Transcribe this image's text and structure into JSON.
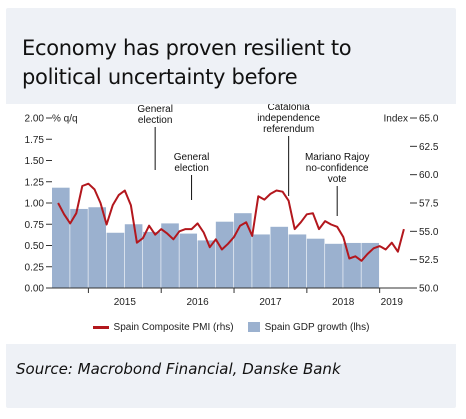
{
  "title_line1": "Economy has proven resilient to",
  "title_line2": "political uncertainty before",
  "source": "Source: Macrobond Financial, Danske Bank",
  "chart_data": {
    "type": "bar+line",
    "left_axis": {
      "label": "% q/q",
      "min": 0.0,
      "max": 2.0,
      "ticks": [
        "0.00",
        "0.25",
        "0.50",
        "0.75",
        "1.00",
        "1.25",
        "1.50",
        "1.75",
        "2.00"
      ]
    },
    "right_axis": {
      "label": "Index",
      "min": 50.0,
      "max": 65.0,
      "ticks": [
        "50.0",
        "52.5",
        "55.0",
        "57.5",
        "60.0",
        "62.5",
        "65.0"
      ]
    },
    "x_ticks": [
      "2015",
      "2016",
      "2017",
      "2018",
      "2019"
    ],
    "colors": {
      "bars": "#9bb1cf",
      "line": "#b3171d"
    },
    "bars": {
      "name": "Spain GDP growth (lhs)",
      "quarters": [
        "2014Q3",
        "2014Q4",
        "2015Q1",
        "2015Q2",
        "2015Q3",
        "2015Q4",
        "2016Q1",
        "2016Q2",
        "2016Q3",
        "2016Q4",
        "2017Q1",
        "2017Q2",
        "2017Q3",
        "2017Q4",
        "2018Q1",
        "2018Q2",
        "2018Q3",
        "2018Q4"
      ],
      "values": [
        1.18,
        0.93,
        0.95,
        0.65,
        0.75,
        0.66,
        0.76,
        0.64,
        0.56,
        0.78,
        0.88,
        0.63,
        0.72,
        0.63,
        0.58,
        0.52,
        0.53,
        0.53
      ]
    },
    "line": {
      "name": "Spain Composite PMI (rhs)",
      "months": [
        "2014-08",
        "2014-09",
        "2014-10",
        "2014-11",
        "2014-12",
        "2015-01",
        "2015-02",
        "2015-03",
        "2015-04",
        "2015-05",
        "2015-06",
        "2015-07",
        "2015-08",
        "2015-09",
        "2015-10",
        "2015-11",
        "2015-12",
        "2016-01",
        "2016-02",
        "2016-03",
        "2016-04",
        "2016-05",
        "2016-06",
        "2016-07",
        "2016-08",
        "2016-09",
        "2016-10",
        "2016-11",
        "2016-12",
        "2017-01",
        "2017-02",
        "2017-03",
        "2017-04",
        "2017-05",
        "2017-06",
        "2017-07",
        "2017-08",
        "2017-09",
        "2017-10",
        "2017-11",
        "2017-12",
        "2018-01",
        "2018-02",
        "2018-03",
        "2018-04",
        "2018-05",
        "2018-06",
        "2018-07",
        "2018-08",
        "2018-09",
        "2018-10",
        "2018-11",
        "2018-12",
        "2019-01",
        "2019-02",
        "2019-03",
        "2019-04",
        "2019-05"
      ],
      "values": [
        57.5,
        56.5,
        55.7,
        56.6,
        59.0,
        59.2,
        58.7,
        57.5,
        55.6,
        57.3,
        58.2,
        58.6,
        57.3,
        54.0,
        54.4,
        55.5,
        54.7,
        55.2,
        54.8,
        54.3,
        55.0,
        55.2,
        55.2,
        55.7,
        54.9,
        53.6,
        54.3,
        53.4,
        53.9,
        54.5,
        55.5,
        55.8,
        54.6,
        58.1,
        57.8,
        58.3,
        58.6,
        58.5,
        57.7,
        55.2,
        55.8,
        56.5,
        56.6,
        55.2,
        55.9,
        55.6,
        55.4,
        54.5,
        52.6,
        52.8,
        52.4,
        53.0,
        53.5,
        53.7,
        53.4,
        54.0,
        53.2,
        55.2
      ]
    },
    "annotations": [
      {
        "text": [
          "General",
          "election"
        ],
        "at": "2015-12"
      },
      {
        "text": [
          "General",
          "election"
        ],
        "at": "2016-06"
      },
      {
        "text": [
          "Catalonia",
          "independence",
          "referendum"
        ],
        "at": "2017-10"
      },
      {
        "text": [
          "Mariano Rajoy",
          "no-confidence",
          "vote"
        ],
        "at": "2018-06"
      }
    ],
    "legend": [
      "Spain Composite PMI (rhs)",
      "Spain GDP growth (lhs)"
    ],
    "legend_position": "bottom",
    "grid": false
  }
}
